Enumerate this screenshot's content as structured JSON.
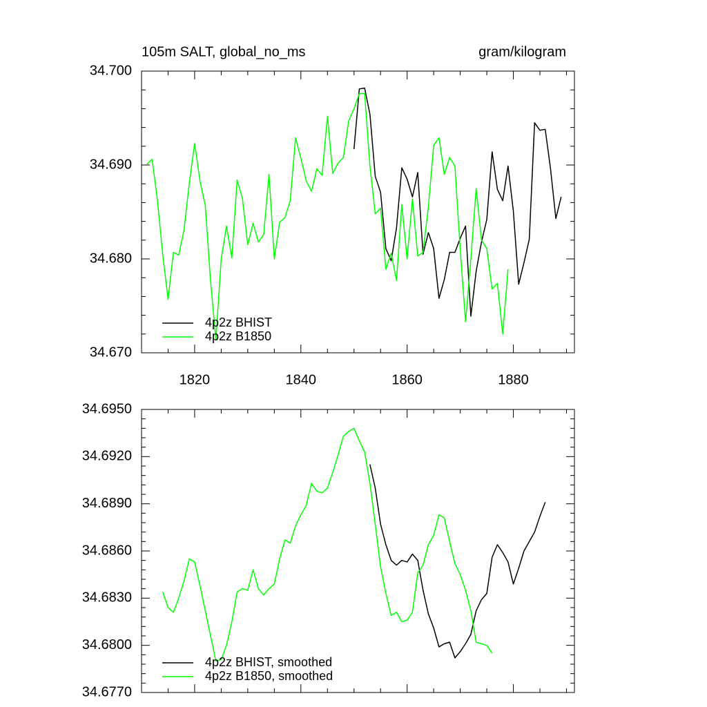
{
  "chart_data": [
    {
      "type": "line",
      "title": "105m SALT, global_no_ms",
      "units": "gram/kilogram",
      "x": [
        1811,
        1812,
        1813,
        1814,
        1815,
        1816,
        1817,
        1818,
        1819,
        1820,
        1821,
        1822,
        1823,
        1824,
        1825,
        1826,
        1827,
        1828,
        1829,
        1830,
        1831,
        1832,
        1833,
        1834,
        1835,
        1836,
        1837,
        1838,
        1839,
        1840,
        1841,
        1842,
        1843,
        1844,
        1845,
        1846,
        1847,
        1848,
        1849,
        1850,
        1851,
        1852,
        1853,
        1854,
        1855,
        1856,
        1857,
        1858,
        1859,
        1860,
        1861,
        1862,
        1863,
        1864,
        1865,
        1866,
        1867,
        1868,
        1869,
        1870,
        1871,
        1872,
        1873,
        1874,
        1875,
        1876,
        1877,
        1878,
        1879,
        1880,
        1881,
        1882,
        1883,
        1884,
        1885,
        1886,
        1887,
        1888,
        1889
      ],
      "series": [
        {
          "name": "4p2z BHIST",
          "color": "#000000",
          "values": [
            null,
            null,
            null,
            null,
            null,
            null,
            null,
            null,
            null,
            null,
            null,
            null,
            null,
            null,
            null,
            null,
            null,
            null,
            null,
            null,
            null,
            null,
            null,
            null,
            null,
            null,
            null,
            null,
            null,
            null,
            null,
            null,
            null,
            null,
            null,
            null,
            null,
            null,
            null,
            34.6917,
            34.6981,
            34.6982,
            34.6954,
            34.6888,
            34.6871,
            34.6811,
            34.6798,
            34.6833,
            34.6897,
            34.6885,
            34.6866,
            34.6892,
            34.6805,
            34.6828,
            34.6811,
            34.6758,
            34.6778,
            34.6807,
            34.6807,
            34.6822,
            34.6835,
            34.6739,
            34.6787,
            34.6818,
            34.6842,
            34.6914,
            34.6874,
            34.6862,
            34.6899,
            34.6851,
            34.6773,
            34.6796,
            34.6821,
            34.6945,
            34.6937,
            34.6938,
            34.6896,
            34.6843,
            34.6866
          ]
        },
        {
          "name": "4p2z B1850",
          "color": "#00ff00",
          "values": [
            34.6901,
            34.6906,
            34.6862,
            34.6804,
            34.6757,
            34.6807,
            34.6804,
            34.6831,
            34.6881,
            34.6923,
            34.6883,
            34.6857,
            34.6776,
            34.6714,
            34.68,
            34.6835,
            34.6801,
            34.6884,
            34.6864,
            34.6815,
            34.6838,
            34.6818,
            34.6826,
            34.689,
            34.68,
            34.6839,
            34.6844,
            34.6862,
            34.6929,
            34.6907,
            34.6883,
            34.6872,
            34.6896,
            34.6889,
            34.6952,
            34.6891,
            34.6902,
            34.6908,
            34.6947,
            34.696,
            34.6976,
            34.6976,
            34.6899,
            34.6848,
            34.6854,
            34.6789,
            34.6806,
            34.6777,
            34.6858,
            34.68,
            34.6864,
            34.6803,
            34.6807,
            34.6855,
            34.6921,
            34.6929,
            34.689,
            34.6908,
            34.6899,
            34.681,
            34.6733,
            34.68,
            34.6875,
            34.682,
            34.6811,
            34.6768,
            34.6774,
            34.672,
            34.6789,
            null,
            null,
            null,
            null,
            null,
            null,
            null,
            null,
            null,
            null
          ]
        }
      ],
      "xlim": [
        1810,
        1891.5
      ],
      "xticks": [
        1820,
        1840,
        1860,
        1880
      ],
      "xtick_labels": true,
      "ylim": [
        34.67,
        34.7
      ],
      "yticks": [
        {
          "value": 34.67,
          "label": "34.670"
        },
        {
          "value": 34.68,
          "label": "34.680"
        },
        {
          "value": 34.69,
          "label": "34.690"
        },
        {
          "value": 34.7,
          "label": "34.700"
        }
      ],
      "legend": "lower left"
    },
    {
      "type": "line",
      "x": [
        1814,
        1815,
        1816,
        1817,
        1818,
        1819,
        1820,
        1821,
        1822,
        1823,
        1824,
        1825,
        1826,
        1827,
        1828,
        1829,
        1830,
        1831,
        1832,
        1833,
        1834,
        1835,
        1836,
        1837,
        1838,
        1839,
        1840,
        1841,
        1842,
        1843,
        1844,
        1845,
        1846,
        1847,
        1848,
        1849,
        1850,
        1851,
        1852,
        1853,
        1854,
        1855,
        1856,
        1857,
        1858,
        1859,
        1860,
        1861,
        1862,
        1863,
        1864,
        1865,
        1866,
        1867,
        1868,
        1869,
        1870,
        1871,
        1872,
        1873,
        1874,
        1875,
        1876,
        1877,
        1878,
        1879,
        1880,
        1881,
        1882,
        1883,
        1884,
        1885,
        1886
      ],
      "series": [
        {
          "name": "4p2z BHIST, smoothed",
          "color": "#000000",
          "values": [
            null,
            null,
            null,
            null,
            null,
            null,
            null,
            null,
            null,
            null,
            null,
            null,
            null,
            null,
            null,
            null,
            null,
            null,
            null,
            null,
            null,
            null,
            null,
            null,
            null,
            null,
            null,
            null,
            null,
            null,
            null,
            null,
            null,
            null,
            null,
            null,
            null,
            null,
            null,
            34.6915,
            34.69,
            34.6877,
            34.6864,
            34.6854,
            34.6851,
            34.6854,
            34.6853,
            34.6858,
            34.6854,
            34.6835,
            34.682,
            34.6811,
            34.6799,
            34.6801,
            34.6802,
            34.6792,
            34.6796,
            34.6801,
            34.6807,
            34.6822,
            34.6829,
            34.6833,
            34.6856,
            34.6864,
            34.6859,
            34.6853,
            34.6839,
            34.6849,
            34.686,
            34.6866,
            34.6872,
            34.6882,
            34.6891
          ]
        },
        {
          "name": "4p2z B1850, smoothed",
          "color": "#00ff00",
          "values": [
            34.6834,
            34.6824,
            34.6821,
            34.683,
            34.6841,
            34.6855,
            34.6853,
            34.6838,
            34.6822,
            34.6806,
            34.679,
            34.6791,
            34.68,
            34.6815,
            34.6834,
            34.6836,
            34.6835,
            34.6848,
            34.6836,
            34.6832,
            34.6836,
            34.6839,
            34.6855,
            34.6867,
            34.6865,
            34.6876,
            34.6883,
            34.6889,
            34.6903,
            34.6898,
            34.6897,
            34.69,
            34.691,
            34.6921,
            34.6933,
            34.6936,
            34.6938,
            34.693,
            34.6923,
            34.6903,
            34.6877,
            34.685,
            34.6833,
            34.6819,
            34.6821,
            34.6815,
            34.6816,
            34.6821,
            34.6846,
            34.6851,
            34.6864,
            34.687,
            34.6883,
            34.6881,
            34.6866,
            34.6852,
            34.6845,
            34.6835,
            34.6822,
            34.6802,
            34.6801,
            34.68,
            34.6795,
            null,
            null,
            null,
            null,
            null,
            null,
            null,
            null,
            null,
            null
          ]
        }
      ],
      "xlim": [
        1810,
        1891.5
      ],
      "xticks": [
        1820,
        1840,
        1860,
        1880
      ],
      "xtick_labels": false,
      "ylim": [
        34.677,
        34.695
      ],
      "yticks": [
        {
          "value": 34.677,
          "label": "34.6770"
        },
        {
          "value": 34.68,
          "label": "34.6800"
        },
        {
          "value": 34.683,
          "label": "34.6830"
        },
        {
          "value": 34.686,
          "label": "34.6860"
        },
        {
          "value": 34.689,
          "label": "34.6890"
        },
        {
          "value": 34.692,
          "label": "34.6920"
        },
        {
          "value": 34.695,
          "label": "34.6950"
        }
      ],
      "legend": "lower left"
    }
  ]
}
